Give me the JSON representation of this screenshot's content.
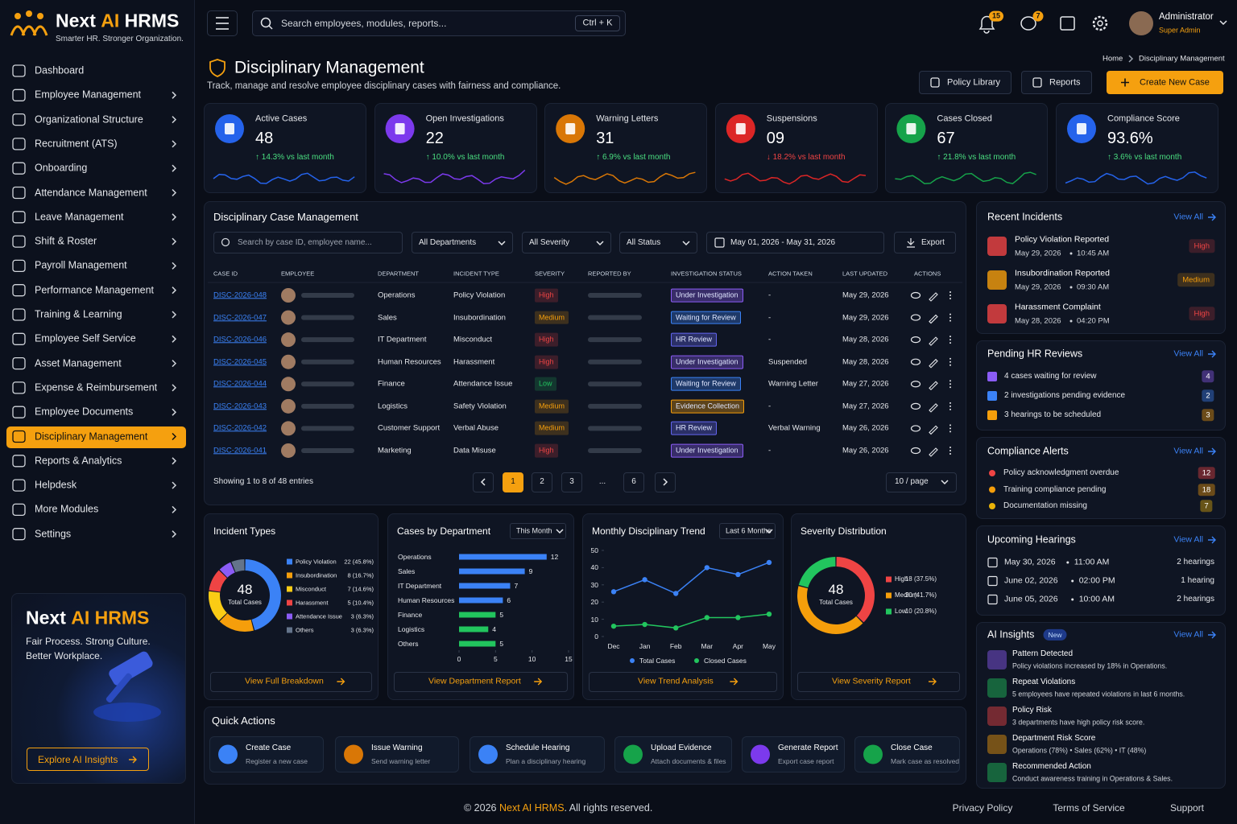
{
  "logo": {
    "prefix": "Next ",
    "accent": "AI",
    "suffix": " HRMS",
    "tagline": "Smarter HR. Stronger Organization."
  },
  "sidebar": {
    "items": [
      {
        "label": "Dashboard",
        "submenu": false
      },
      {
        "label": "Employee Management",
        "submenu": true
      },
      {
        "label": "Organizational Structure",
        "submenu": true
      },
      {
        "label": "Recruitment (ATS)",
        "submenu": true
      },
      {
        "label": "Onboarding",
        "submenu": true
      },
      {
        "label": "Attendance Management",
        "submenu": true
      },
      {
        "label": "Leave Management",
        "submenu": true
      },
      {
        "label": "Shift & Roster",
        "submenu": true
      },
      {
        "label": "Payroll Management",
        "submenu": true
      },
      {
        "label": "Performance Management",
        "submenu": true
      },
      {
        "label": "Training & Learning",
        "submenu": true
      },
      {
        "label": "Employee Self Service",
        "submenu": true
      },
      {
        "label": "Asset Management",
        "submenu": true
      },
      {
        "label": "Expense & Reimbursement",
        "submenu": true
      },
      {
        "label": "Employee Documents",
        "submenu": true
      },
      {
        "label": "Disciplinary Management",
        "submenu": true,
        "active": true
      },
      {
        "label": "Reports & Analytics",
        "submenu": true
      },
      {
        "label": "Helpdesk",
        "submenu": true
      },
      {
        "label": "More Modules",
        "submenu": true
      },
      {
        "label": "Settings",
        "submenu": true
      }
    ]
  },
  "promo": {
    "prefix": "Next ",
    "accent": "AI HRMS",
    "line1": "Fair Process. Strong Culture.",
    "line2": "Better Workplace.",
    "button": "Explore AI Insights"
  },
  "topbar": {
    "search_placeholder": "Search employees, modules, reports...",
    "shortcut": "Ctrl + K",
    "notifications": 15,
    "messages": 7,
    "user_name": "Administrator",
    "user_role": "Super Admin"
  },
  "page": {
    "title": "Disciplinary Management",
    "subtitle": "Track, manage and resolve employee disciplinary cases with fairness and compliance.",
    "breadcrumb": [
      "Home",
      "Disciplinary Management"
    ],
    "actions": [
      {
        "label": "Policy Library"
      },
      {
        "label": "Reports"
      },
      {
        "label": "Create New Case",
        "primary": true
      }
    ]
  },
  "kpis": [
    {
      "label": "Active Cases",
      "value": "48",
      "change": "↑ 14.3% vs last month",
      "trend": "up",
      "color": "#2563eb"
    },
    {
      "label": "Open Investigations",
      "value": "22",
      "change": "↑ 10.0% vs last month",
      "trend": "up",
      "color": "#7c3aed"
    },
    {
      "label": "Warning Letters",
      "value": "31",
      "change": "↑ 6.9% vs last month",
      "trend": "up",
      "color": "#d97706"
    },
    {
      "label": "Suspensions",
      "value": "09",
      "change": "↓ 18.2% vs last month",
      "trend": "down",
      "color": "#dc2626"
    },
    {
      "label": "Cases Closed",
      "value": "67",
      "change": "↑ 21.8% vs last month",
      "trend": "up",
      "color": "#16a34a"
    },
    {
      "label": "Compliance Score",
      "value": "93.6%",
      "change": "↑ 3.6% vs last month",
      "trend": "up",
      "color": "#2563eb"
    }
  ],
  "cases_table": {
    "title": "Disciplinary Case Management",
    "search_placeholder": "Search by case ID, employee name...",
    "filters": [
      "All Departments",
      "All Severity",
      "All Status"
    ],
    "date_range": "May 01, 2026 - May 31, 2026",
    "export": "Export",
    "columns": [
      "CASE ID",
      "EMPLOYEE",
      "DEPARTMENT",
      "INCIDENT TYPE",
      "SEVERITY",
      "REPORTED BY",
      "INVESTIGATION STATUS",
      "ACTION TAKEN",
      "LAST UPDATED",
      "ACTIONS"
    ],
    "rows": [
      {
        "case_id": "DISC-2026-048",
        "department": "Operations",
        "incident_type": "Policy Violation",
        "severity": "High",
        "severity_color": "#ef4444",
        "status": "Under Investigation",
        "status_color": "#8b5cf6",
        "action_taken": "-",
        "last_updated": "May 29, 2026"
      },
      {
        "case_id": "DISC-2026-047",
        "department": "Sales",
        "incident_type": "Insubordination",
        "severity": "Medium",
        "severity_color": "#f59e0b",
        "status": "Waiting for Review",
        "status_color": "#3b82f6",
        "action_taken": "-",
        "last_updated": "May 29, 2026"
      },
      {
        "case_id": "DISC-2026-046",
        "department": "IT Department",
        "incident_type": "Misconduct",
        "severity": "High",
        "severity_color": "#ef4444",
        "status": "HR Review",
        "status_color": "#6366f1",
        "action_taken": "-",
        "last_updated": "May 28, 2026"
      },
      {
        "case_id": "DISC-2026-045",
        "department": "Human Resources",
        "incident_type": "Harassment",
        "severity": "High",
        "severity_color": "#ef4444",
        "status": "Under Investigation",
        "status_color": "#8b5cf6",
        "action_taken": "Suspended",
        "last_updated": "May 28, 2026"
      },
      {
        "case_id": "DISC-2026-044",
        "department": "Finance",
        "incident_type": "Attendance Issue",
        "severity": "Low",
        "severity_color": "#22c55e",
        "status": "Waiting for Review",
        "status_color": "#3b82f6",
        "action_taken": "Warning Letter",
        "last_updated": "May 27, 2026"
      },
      {
        "case_id": "DISC-2026-043",
        "department": "Logistics",
        "incident_type": "Safety Violation",
        "severity": "Medium",
        "severity_color": "#f59e0b",
        "status": "Evidence Collection",
        "status_color": "#f59e0b",
        "action_taken": "-",
        "last_updated": "May 27, 2026"
      },
      {
        "case_id": "DISC-2026-042",
        "department": "Customer Support",
        "incident_type": "Verbal Abuse",
        "severity": "Medium",
        "severity_color": "#f59e0b",
        "status": "HR Review",
        "status_color": "#6366f1",
        "action_taken": "Verbal Warning",
        "last_updated": "May 26, 2026"
      },
      {
        "case_id": "DISC-2026-041",
        "department": "Marketing",
        "incident_type": "Data Misuse",
        "severity": "High",
        "severity_color": "#ef4444",
        "status": "Under Investigation",
        "status_color": "#8b5cf6",
        "action_taken": "-",
        "last_updated": "May 26, 2026"
      }
    ],
    "footer": "Showing 1 to 8 of 48 entries",
    "pages": [
      {
        "label": "1",
        "current": true
      },
      {
        "label": "2"
      },
      {
        "label": "3"
      },
      {
        "label": "..."
      },
      {
        "label": "6"
      }
    ],
    "page_size": "10 / page"
  },
  "chart_data": [
    {
      "type": "donut",
      "title": "Incident Types",
      "center_value": 48,
      "center_label": "Total Cases",
      "categories": [
        "Policy Violation",
        "Insubordination",
        "Misconduct",
        "Harassment",
        "Attendance Issue",
        "Others"
      ],
      "values": [
        22,
        8,
        7,
        5,
        3,
        3
      ],
      "value_labels": [
        "22 (45.8%)",
        "8 (16.7%)",
        "7 (14.6%)",
        "5 (10.4%)",
        "3 (6.3%)",
        "3 (6.3%)"
      ],
      "colors": [
        "#3b82f6",
        "#f59e0b",
        "#facc15",
        "#ef4444",
        "#8b5cf6",
        "#64748b"
      ],
      "link": "View Full Breakdown"
    },
    {
      "type": "hbar",
      "title": "Cases by Department",
      "filter": "This Month",
      "categories": [
        "Operations",
        "Sales",
        "IT Department",
        "Human Resources",
        "Finance",
        "Logistics",
        "Others"
      ],
      "values": [
        12,
        9,
        7,
        6,
        5,
        4,
        5
      ],
      "colors": [
        "#3b82f6",
        "#3b82f6",
        "#3b82f6",
        "#3b82f6",
        "#22c55e",
        "#22c55e",
        "#22c55e"
      ],
      "xlim": [
        0,
        15
      ],
      "xticks": [
        0,
        5,
        10,
        15
      ],
      "link": "View Department Report"
    },
    {
      "type": "line",
      "title": "Monthly Disciplinary Trend",
      "filter": "Last 6 Months",
      "categories": [
        "Dec",
        "Jan",
        "Feb",
        "Mar",
        "Apr",
        "May"
      ],
      "series": [
        {
          "name": "Total Cases",
          "color": "#3b82f6",
          "values": [
            26,
            33,
            25,
            40,
            36,
            43
          ]
        },
        {
          "name": "Closed Cases",
          "color": "#22c55e",
          "values": [
            6,
            7,
            5,
            11,
            11,
            13
          ]
        }
      ],
      "ylim": [
        0,
        50
      ],
      "yticks": [
        0,
        10,
        20,
        30,
        40,
        50
      ],
      "link": "View Trend Analysis"
    },
    {
      "type": "donut",
      "title": "Severity Distribution",
      "center_value": 48,
      "center_label": "Total Cases",
      "categories": [
        "High",
        "Medium",
        "Low"
      ],
      "values": [
        18,
        20,
        10
      ],
      "value_labels": [
        "18 (37.5%)",
        "20 (41.7%)",
        "10 (20.8%)"
      ],
      "colors": [
        "#ef4444",
        "#f59e0b",
        "#22c55e"
      ],
      "link": "View Severity Report"
    }
  ],
  "recent_incidents": {
    "title": "Recent Incidents",
    "view_all": "View All",
    "items": [
      {
        "title": "Policy Violation Reported",
        "date": "May 29, 2026",
        "time": "10:45 AM",
        "severity": "High",
        "color": "#ef4444"
      },
      {
        "title": "Insubordination Reported",
        "date": "May 29, 2026",
        "time": "09:30 AM",
        "severity": "Medium",
        "color": "#f59e0b"
      },
      {
        "title": "Harassment Complaint",
        "date": "May 28, 2026",
        "time": "04:20 PM",
        "severity": "High",
        "color": "#ef4444"
      }
    ]
  },
  "pending_reviews": {
    "title": "Pending HR Reviews",
    "view_all": "View All",
    "items": [
      {
        "text": "4 cases waiting for review",
        "count": 4,
        "color": "#8b5cf6"
      },
      {
        "text": "2 investigations pending evidence",
        "count": 2,
        "color": "#3b82f6"
      },
      {
        "text": "3 hearings to be scheduled",
        "count": 3,
        "color": "#f59e0b"
      }
    ]
  },
  "compliance_alerts": {
    "title": "Compliance Alerts",
    "view_all": "View All",
    "items": [
      {
        "text": "Policy acknowledgment overdue",
        "count": 12,
        "color": "#ef4444"
      },
      {
        "text": "Training compliance pending",
        "count": 18,
        "color": "#f59e0b"
      },
      {
        "text": "Documentation missing",
        "count": 7,
        "color": "#eab308"
      }
    ]
  },
  "upcoming_hearings": {
    "title": "Upcoming Hearings",
    "view_all": "View All",
    "items": [
      {
        "date": "May 30, 2026",
        "time": "11:00 AM",
        "count": "2 hearings"
      },
      {
        "date": "June 02, 2026",
        "time": "02:00 PM",
        "count": "1 hearing"
      },
      {
        "date": "June 05, 2026",
        "time": "10:00 AM",
        "count": "2 hearings"
      }
    ]
  },
  "ai_insights": {
    "title": "AI Insights",
    "badge": "New",
    "view_all": "View All",
    "items": [
      {
        "title": "Pattern Detected",
        "text": "Policy violations increased by 18% in Operations.",
        "color": "#8b5cf6"
      },
      {
        "title": "Repeat Violations",
        "text": "5 employees have repeated violations in last 6 months.",
        "color": "#22c55e"
      },
      {
        "title": "Policy Risk",
        "text": "3 departments have high policy risk score.",
        "color": "#ef4444"
      },
      {
        "title": "Department Risk Score",
        "text": "Operations (78%)  •  Sales (62%)  •  IT (48%)",
        "color": "#f59e0b"
      },
      {
        "title": "Recommended Action",
        "text": "Conduct awareness training in Operations & Sales.",
        "color": "#22c55e"
      }
    ]
  },
  "quick_actions": {
    "title": "Quick Actions",
    "items": [
      {
        "title": "Create Case",
        "subtitle": "Register a new case",
        "color": "#3b82f6"
      },
      {
        "title": "Issue Warning",
        "subtitle": "Send warning letter",
        "color": "#d97706"
      },
      {
        "title": "Schedule Hearing",
        "subtitle": "Plan a disciplinary hearing",
        "color": "#3b82f6"
      },
      {
        "title": "Upload Evidence",
        "subtitle": "Attach documents & files",
        "color": "#16a34a"
      },
      {
        "title": "Generate Report",
        "subtitle": "Export case report",
        "color": "#7c3aed"
      },
      {
        "title": "Close Case",
        "subtitle": "Mark case as resolved",
        "color": "#16a34a"
      }
    ]
  },
  "footer": {
    "prefix": "© 2026 ",
    "brand": "Next AI HRMS",
    "suffix": ". All rights reserved.",
    "links": [
      "Privacy Policy",
      "Terms of Service",
      "Support"
    ]
  }
}
